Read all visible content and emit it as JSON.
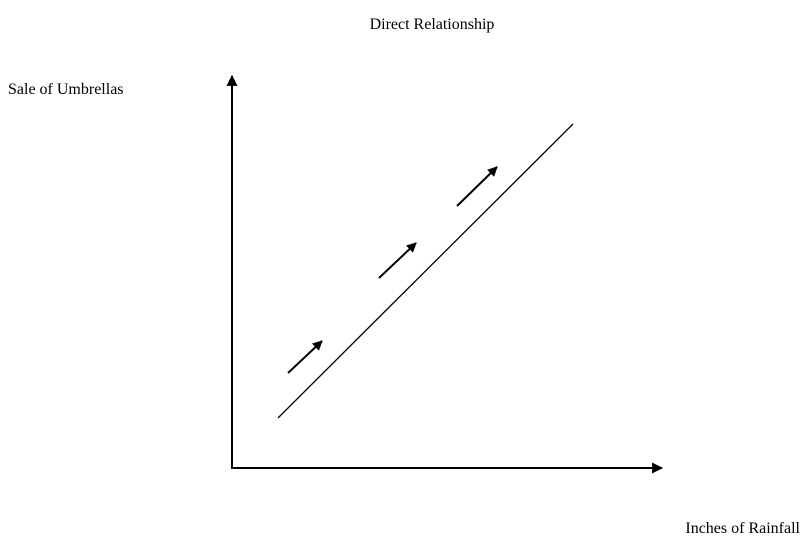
{
  "title": "Direct Relationship",
  "y_axis_label": "Sale of Umbrellas",
  "x_axis_label": "Inches of Rainfall"
}
